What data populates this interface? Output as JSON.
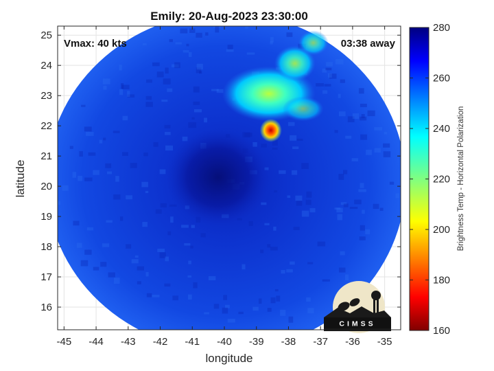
{
  "chart_data": {
    "type": "heatmap",
    "title": "Emily: 20-Aug-2023 23:30:00",
    "xlabel": "longitude",
    "ylabel": "latitude",
    "xlim": [
      -45.2,
      -34.5
    ],
    "ylim": [
      15.25,
      25.3
    ],
    "xticks": [
      -45,
      -44,
      -43,
      -42,
      -41,
      -40,
      -39,
      -38,
      -37,
      -36,
      -35
    ],
    "yticks": [
      16,
      17,
      18,
      19,
      20,
      21,
      22,
      23,
      24,
      25
    ],
    "grid": true,
    "annotations": {
      "top_left": "Vmax: 40 kts",
      "top_right": "03:38 away"
    },
    "colorbar": {
      "label": "Brightness Temp - Horizontal Polarization",
      "min": 160,
      "max": 280,
      "ticks": [
        160,
        180,
        200,
        220,
        240,
        260,
        280
      ],
      "colormap": "jet"
    },
    "swath": {
      "center_lon": -39.95,
      "center_lat": 20.15,
      "radius_deg": 5.6
    },
    "features": [
      {
        "name": "storm-center",
        "lon": -40.2,
        "lat": 20.3,
        "value": 272
      },
      {
        "name": "cold-cloud-core",
        "lon": -38.55,
        "lat": 21.85,
        "value": 188
      },
      {
        "name": "rain-band-north",
        "lon": -38.4,
        "lat": 23.2,
        "value": 225
      }
    ]
  },
  "logo": {
    "text": "CIMSS"
  }
}
